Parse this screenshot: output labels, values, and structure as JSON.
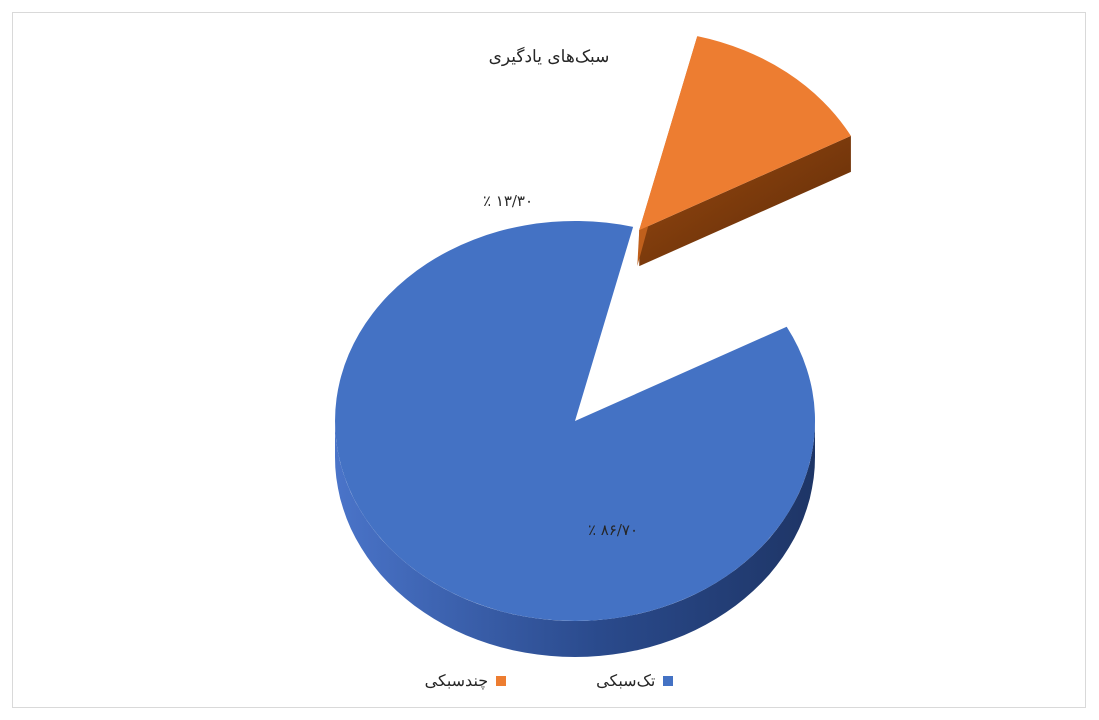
{
  "chart_data": {
    "type": "pie",
    "title": "سبک‌های یادگیری",
    "categories": [
      "تک‌سبکی",
      "چندسبکی"
    ],
    "values": [
      86.7,
      13.3
    ],
    "data_labels": [
      "٪ ۸۶/۷۰",
      "٪ ۱۳/۳۰"
    ],
    "exploded": [
      false,
      true
    ],
    "three_d": true,
    "legend_position": "bottom",
    "colors": [
      "#4472c4",
      "#ed7d31"
    ],
    "side_colors": [
      "#2f5597",
      "#843c0c"
    ]
  }
}
